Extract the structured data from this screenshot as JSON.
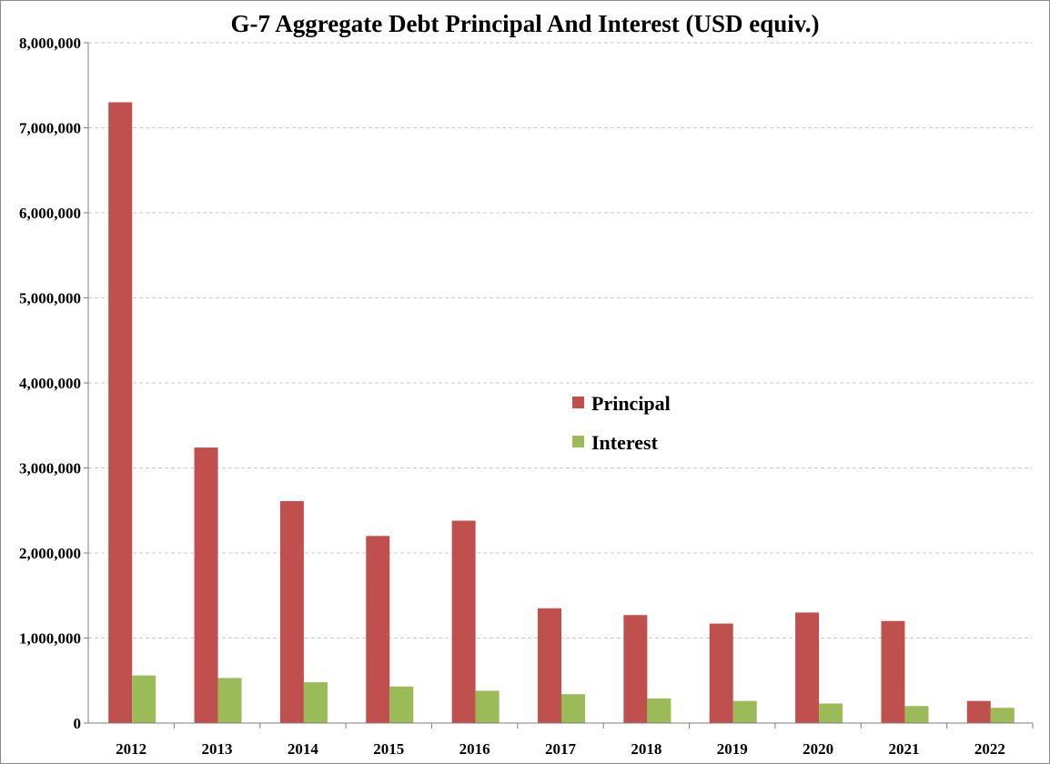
{
  "chart_data": {
    "type": "bar",
    "title": "G-7 Aggregate Debt Principal And Interest (USD equiv.)",
    "xlabel": "",
    "ylabel": "",
    "categories": [
      "2012",
      "2013",
      "2014",
      "2015",
      "2016",
      "2017",
      "2018",
      "2019",
      "2020",
      "2021",
      "2022"
    ],
    "ylim": [
      0,
      8000000
    ],
    "yticks": [
      0,
      1000000,
      2000000,
      3000000,
      4000000,
      5000000,
      6000000,
      7000000,
      8000000
    ],
    "ytick_labels": [
      "0",
      "1,000,000",
      "2,000,000",
      "3,000,000",
      "4,000,000",
      "5,000,000",
      "6,000,000",
      "7,000,000",
      "8,000,000"
    ],
    "grid": true,
    "legend_position": "center-right",
    "series": [
      {
        "name": "Principal",
        "color": "#c0504d",
        "values": [
          7300000,
          3240000,
          2610000,
          2200000,
          2380000,
          1350000,
          1270000,
          1170000,
          1300000,
          1200000,
          260000
        ]
      },
      {
        "name": "Interest",
        "color": "#9bbb59",
        "values": [
          560000,
          530000,
          480000,
          430000,
          380000,
          340000,
          290000,
          260000,
          230000,
          200000,
          180000
        ]
      }
    ]
  }
}
